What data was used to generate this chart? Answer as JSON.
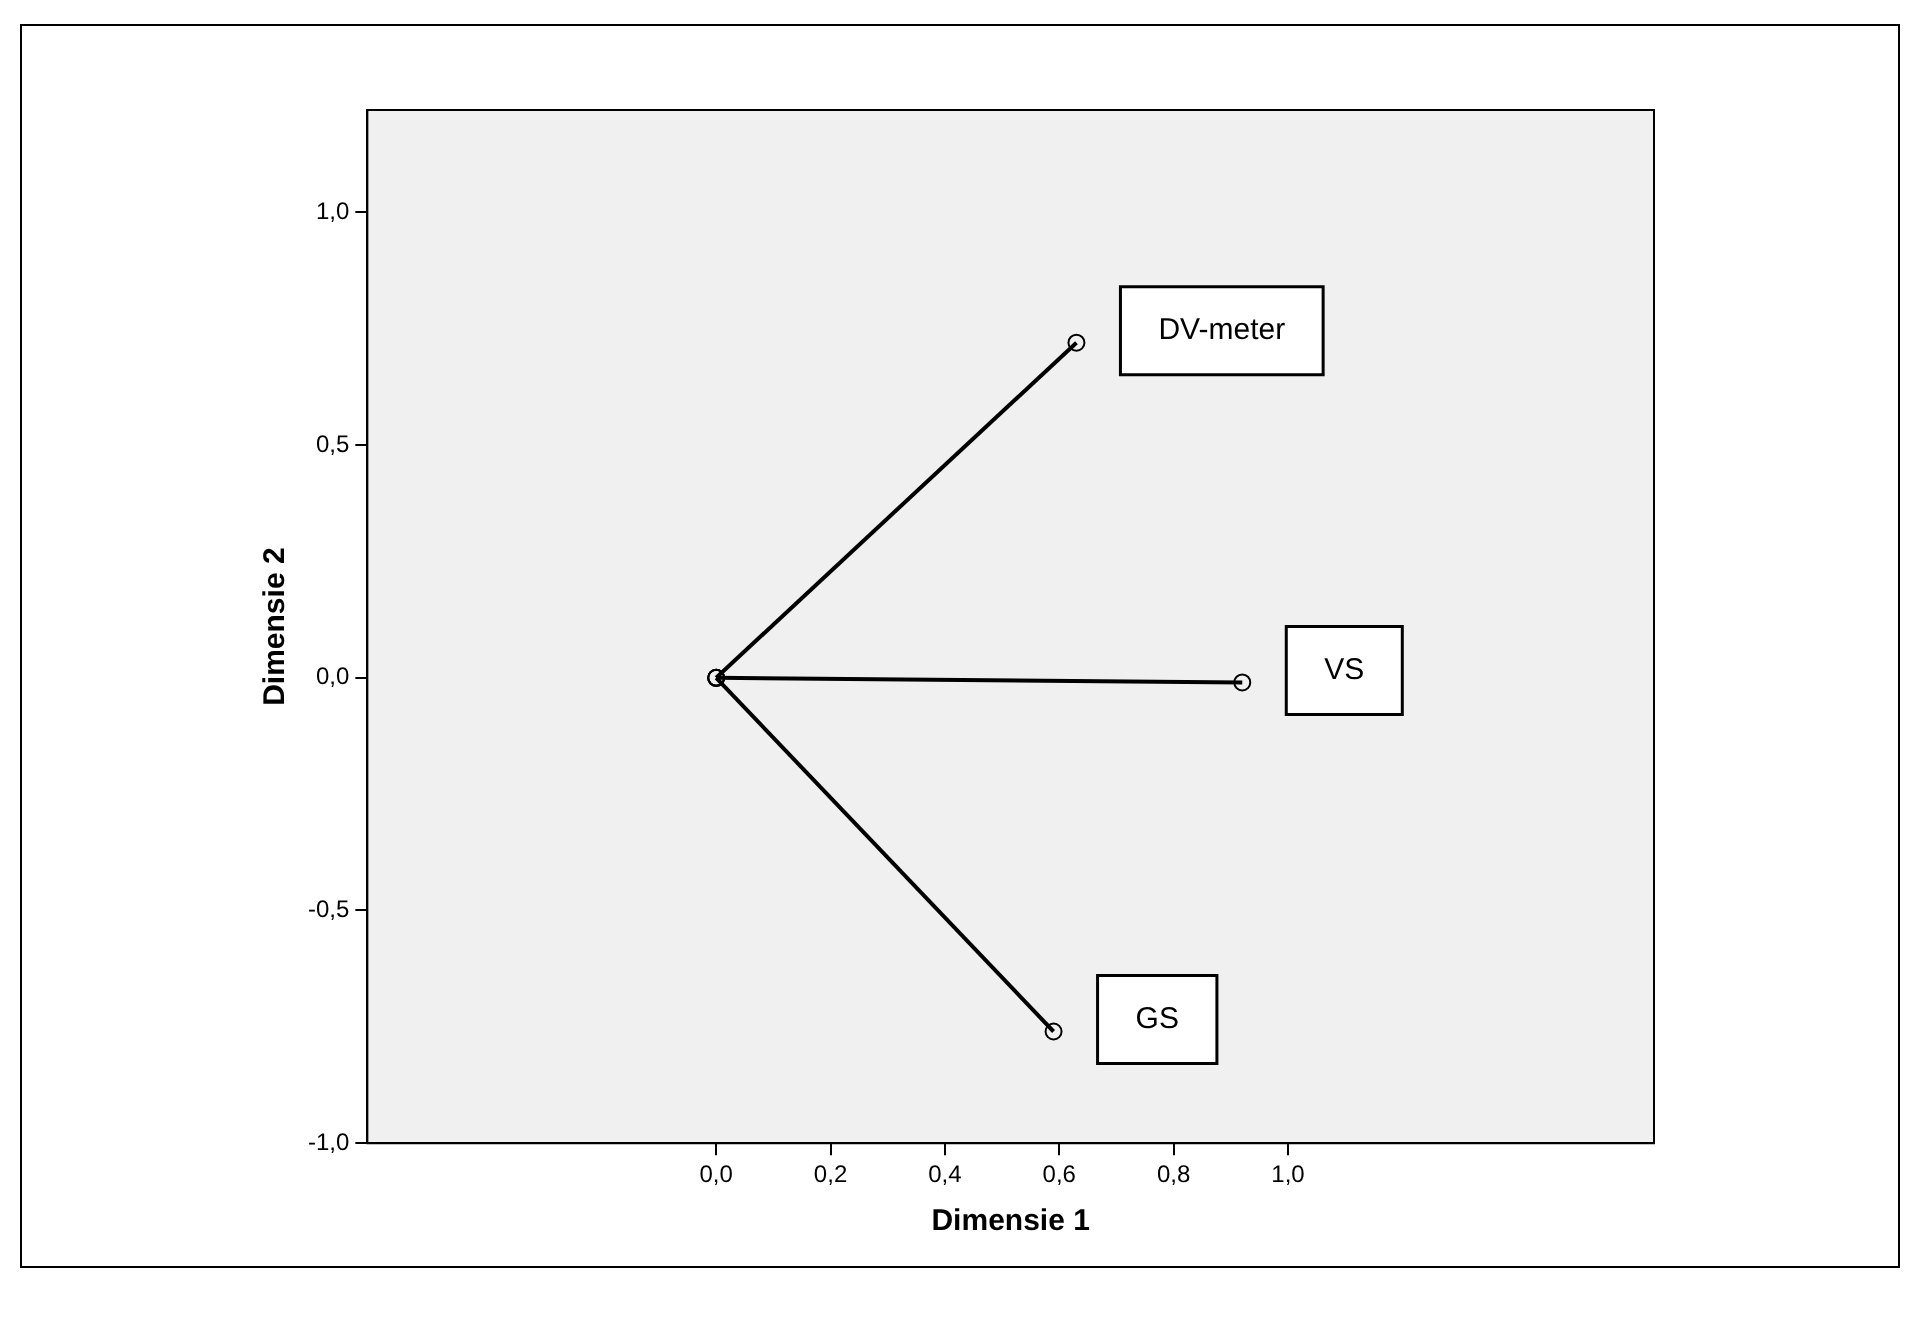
{
  "chart_data": {
    "type": "line",
    "xlabel": "Dimensie 1",
    "ylabel": "Dimensie 2",
    "series": [
      {
        "name": "DV-meter",
        "color": "#000000",
        "x": [
          0,
          0.63
        ],
        "values": [
          0,
          0.72
        ]
      },
      {
        "name": "VS",
        "color": "#000000",
        "x": [
          0,
          0.92
        ],
        "values": [
          0,
          -0.01
        ]
      },
      {
        "name": "GS",
        "color": "#000000",
        "x": [
          0,
          0.59
        ],
        "values": [
          0,
          -0.76
        ]
      }
    ],
    "xlim": [
      -0.61,
      1.64
    ],
    "xticks": [
      {
        "value": 0,
        "label": "0,0"
      },
      {
        "value": 0.2,
        "label": "0,2"
      },
      {
        "value": 0.4,
        "label": "0,4"
      },
      {
        "value": 0.6,
        "label": "0,6"
      },
      {
        "value": 0.8,
        "label": "0,8"
      },
      {
        "value": 1,
        "label": "1,0"
      }
    ],
    "ylim": [
      -1,
      1.22
    ],
    "yticks": [
      {
        "value": -1,
        "label": "-1,0"
      },
      {
        "value": -0.5,
        "label": "-0,5"
      },
      {
        "value": 0,
        "label": "0,0"
      },
      {
        "value": 0.5,
        "label": "0,5"
      },
      {
        "value": 1,
        "label": "1,0"
      }
    ],
    "grid": false,
    "legend": false,
    "marker": "circle",
    "line_style": "solid"
  }
}
